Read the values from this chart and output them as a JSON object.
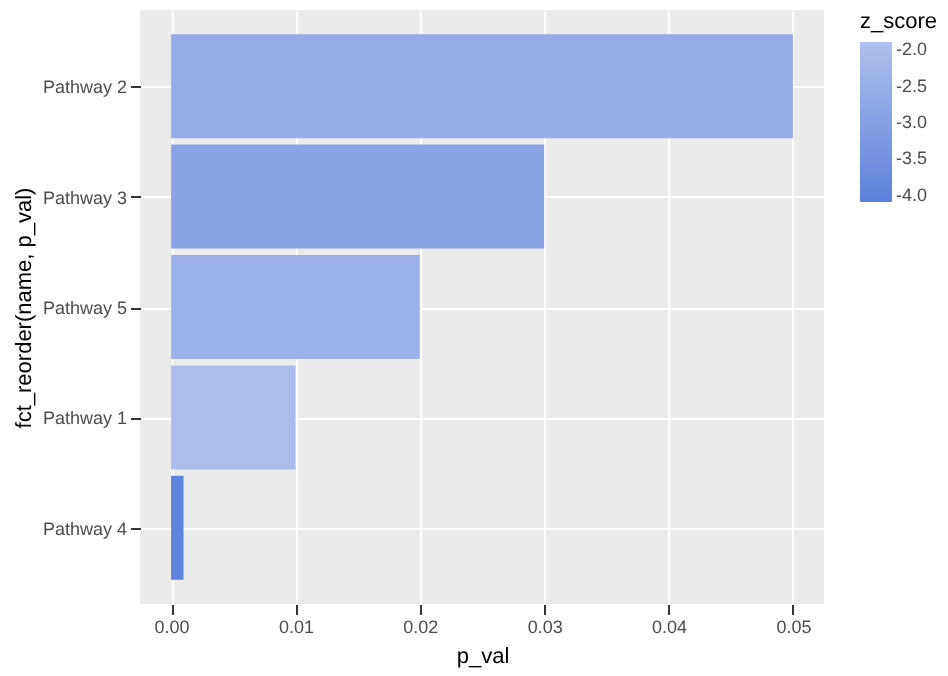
{
  "chart_data": {
    "type": "bar",
    "orientation": "horizontal",
    "xlabel": "p_val",
    "ylabel": "fct_reorder(name, p_val)",
    "clabel": "z_score",
    "categories": [
      "Pathway 2",
      "Pathway 3",
      "Pathway 5",
      "Pathway 1",
      "Pathway 4"
    ],
    "values": [
      0.05,
      0.03,
      0.02,
      0.01,
      0.001
    ],
    "cvalues": [
      -2.6,
      -2.9,
      -2.4,
      -2.0,
      -4.0
    ],
    "colors": [
      "#8aa3e6",
      "#87a0e5",
      "#94abe9",
      "#b0c0ee",
      "#5b80d9"
    ],
    "xlim": [
      -0.0025,
      0.0525
    ],
    "xticks": [
      {
        "value": 0,
        "label": "0.00"
      },
      {
        "value": 0.01,
        "label": "0.01"
      },
      {
        "value": 0.02,
        "label": "0.02"
      },
      {
        "value": 0.03,
        "label": "0.03"
      },
      {
        "value": 0.04,
        "label": "0.04"
      },
      {
        "value": 0.05,
        "label": "0.05"
      }
    ],
    "clim": [
      -4.1,
      -1.9
    ],
    "cticks": [
      {
        "value": -2,
        "label": "-2.0"
      },
      {
        "value": -2.5,
        "label": "-2.5"
      },
      {
        "value": -3,
        "label": "-3.0"
      },
      {
        "value": -3.5,
        "label": "-3.5"
      },
      {
        "value": -4,
        "label": "-4.0"
      }
    ],
    "grid": true
  }
}
